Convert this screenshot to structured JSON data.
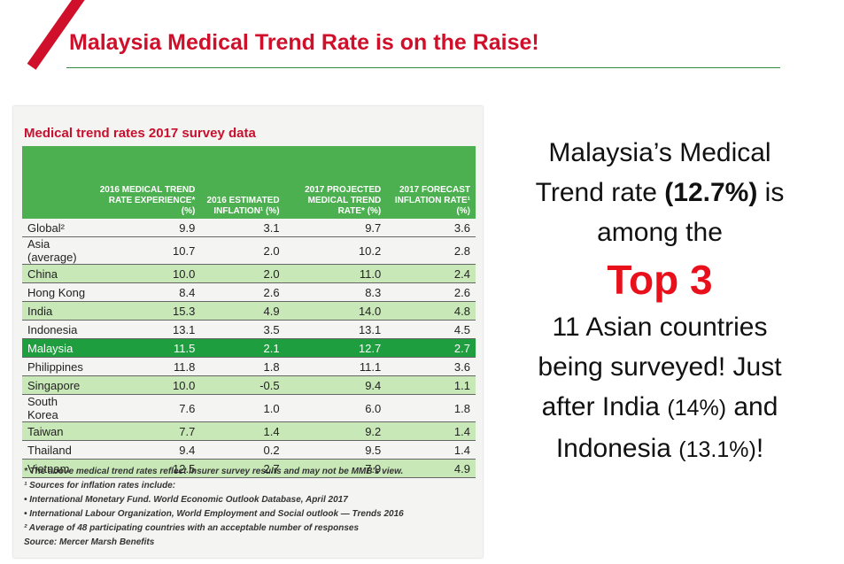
{
  "header": {
    "title": "Malaysia Medical Trend Rate is on the Raise!"
  },
  "table": {
    "title": "Medical trend rates 2017 survey data",
    "columns": [
      "2016 MEDICAL TREND RATE EXPERIENCE* (%)",
      "2016 ESTIMATED INFLATION¹ (%)",
      "2017 PROJECTED MEDICAL TREND RATE* (%)",
      "2017 FORECAST INFLATION RATE¹ (%)"
    ],
    "rows": [
      [
        "Global²",
        "9.9",
        "3.1",
        "9.7",
        "3.6"
      ],
      [
        "Asia (average)",
        "10.7",
        "2.0",
        "10.2",
        "2.8"
      ],
      [
        "China",
        "10.0",
        "2.0",
        "11.0",
        "2.4"
      ],
      [
        "Hong Kong",
        "8.4",
        "2.6",
        "8.3",
        "2.6"
      ],
      [
        "India",
        "15.3",
        "4.9",
        "14.0",
        "4.8"
      ],
      [
        "Indonesia",
        "13.1",
        "3.5",
        "13.1",
        "4.5"
      ],
      [
        "Malaysia",
        "11.5",
        "2.1",
        "12.7",
        "2.7"
      ],
      [
        "Philippines",
        "11.8",
        "1.8",
        "11.1",
        "3.6"
      ],
      [
        "Singapore",
        "10.0",
        "-0.5",
        "9.4",
        "1.1"
      ],
      [
        "South Korea",
        "7.6",
        "1.0",
        "6.0",
        "1.8"
      ],
      [
        "Taiwan",
        "7.7",
        "1.4",
        "9.2",
        "1.4"
      ],
      [
        "Thailand",
        "9.4",
        "0.2",
        "9.5",
        "1.4"
      ],
      [
        "Vietnam",
        "12.5",
        "2.7",
        "7.9",
        "4.9"
      ]
    ],
    "notes": [
      "* The above medical trend rates reflect insurer survey results and may not be MMB's view.",
      "¹ Sources for inflation rates include:",
      "• International Monetary Fund. World Economic Outlook Database, April 2017",
      "• International Labour Organization, World Employment and Social outlook — Trends 2016",
      "² Average of 48 participating countries with an acceptable number of responses",
      "Source: Mercer Marsh Benefits"
    ]
  },
  "callout": {
    "line1": "Malaysia’s Medical Trend rate",
    "highlight": "(12.7%)",
    "line2": "is among the",
    "emphasis": "Top 3",
    "line3": "11 Asian countries being surveyed! Just after India",
    "india": "(14%)",
    "line4": "and Indonesia",
    "indonesia": "(13.1%)",
    "end": "!"
  }
}
